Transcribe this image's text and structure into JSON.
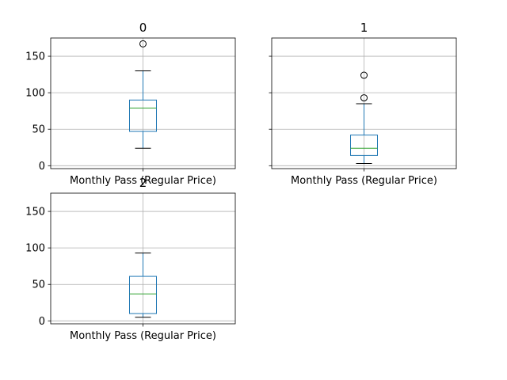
{
  "chart_data": [
    {
      "type": "box",
      "title": "0",
      "xlabel": "Monthly Pass (Regular Price)",
      "ylim": [
        -4,
        175
      ],
      "yticks": [
        0,
        50,
        100,
        150
      ],
      "grid": true,
      "box": {
        "whisker_low": 24,
        "q1": 47,
        "median": 79,
        "q3": 90,
        "whisker_high": 130,
        "outliers": [
          167
        ]
      }
    },
    {
      "type": "box",
      "title": "1",
      "xlabel": "Monthly Pass (Regular Price)",
      "ylim": [
        -4,
        175
      ],
      "yticks": [
        0,
        50,
        100,
        150
      ],
      "grid": true,
      "box": {
        "whisker_low": 3,
        "q1": 14,
        "median": 24,
        "q3": 42,
        "whisker_high": 85,
        "outliers": [
          124,
          93
        ]
      }
    },
    {
      "type": "box",
      "title": "2",
      "xlabel": "Monthly Pass (Regular Price)",
      "ylim": [
        -4,
        175
      ],
      "yticks": [
        0,
        50,
        100,
        150
      ],
      "grid": true,
      "box": {
        "whisker_low": 5,
        "q1": 10,
        "median": 37,
        "q3": 61,
        "whisker_high": 93,
        "outliers": []
      }
    }
  ],
  "colors": {
    "box": "#1f77b4",
    "median": "#2ca02c",
    "grid": "#b0b0b0",
    "axis": "#000000",
    "text": "#000000"
  }
}
